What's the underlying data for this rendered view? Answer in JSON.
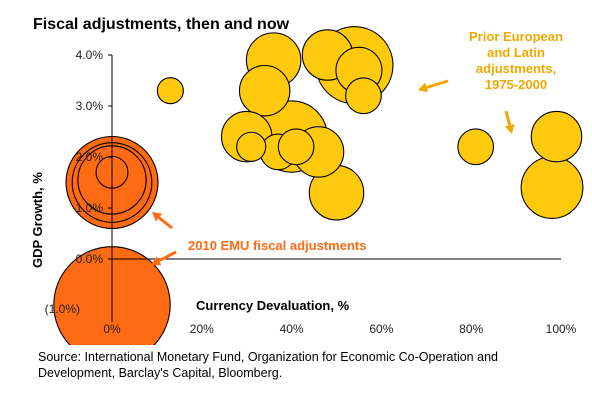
{
  "chart_data": {
    "type": "bubble",
    "title": "Fiscal adjustments, then and now",
    "xlabel": "Currency Devaluation, %",
    "ylabel": "GDP Growth, %",
    "xlim": [
      0,
      100
    ],
    "ylim": [
      -1.0,
      4.0
    ],
    "x_ticks": [
      "0%",
      "20%",
      "40%",
      "60%",
      "80%",
      "100%"
    ],
    "y_ticks": [
      "(1.0%)",
      "0.0%",
      "1.0%",
      "2.0%",
      "3.0%",
      "4.0%"
    ],
    "grid": false,
    "series": [
      {
        "name": "Prior European and Latin adjustments, 1975-2000",
        "color": "#FFC90E",
        "points": [
          {
            "x": 36,
            "y": 3.9,
            "size": 0.35
          },
          {
            "x": 54,
            "y": 3.8,
            "size": 0.7
          },
          {
            "x": 48,
            "y": 4.0,
            "size": 0.3
          },
          {
            "x": 55,
            "y": 3.7,
            "size": 0.25
          },
          {
            "x": 56,
            "y": 3.2,
            "size": 0.15
          },
          {
            "x": 34,
            "y": 3.3,
            "size": 0.3
          },
          {
            "x": 13,
            "y": 3.3,
            "size": 0.08
          },
          {
            "x": 30,
            "y": 2.4,
            "size": 0.3
          },
          {
            "x": 40,
            "y": 2.4,
            "size": 0.6
          },
          {
            "x": 31,
            "y": 2.2,
            "size": 0.1
          },
          {
            "x": 37,
            "y": 2.1,
            "size": 0.15
          },
          {
            "x": 41,
            "y": 2.2,
            "size": 0.15
          },
          {
            "x": 46,
            "y": 2.1,
            "size": 0.3
          },
          {
            "x": 50,
            "y": 1.3,
            "size": 0.35
          },
          {
            "x": 81,
            "y": 2.2,
            "size": 0.15
          },
          {
            "x": 99,
            "y": 2.4,
            "size": 0.3
          },
          {
            "x": 98,
            "y": 1.4,
            "size": 0.45
          }
        ]
      },
      {
        "name": "2010 EMU fiscal adjustments",
        "color": "#FF6A13",
        "points": [
          {
            "x": 0,
            "y": 1.5,
            "size": 1.0
          },
          {
            "x": 0,
            "y": 1.5,
            "size": 0.75
          },
          {
            "x": 0,
            "y": 1.55,
            "size": 0.55
          },
          {
            "x": 0,
            "y": 1.7,
            "size": 0.12
          },
          {
            "x": 0,
            "y": -0.9,
            "size": 1.6
          }
        ]
      }
    ],
    "annotations": [
      {
        "lines": [
          "Prior European",
          "and Latin",
          "adjustments,",
          "1975-2000"
        ],
        "color": "#F0A800"
      },
      {
        "lines": [
          "2010 EMU fiscal adjustments"
        ],
        "color": "#FF6A13"
      }
    ]
  },
  "source": "Source: International Monetary Fund, Organization for Economic Co-Operation and Development, Barclay's Capital, Bloomberg."
}
